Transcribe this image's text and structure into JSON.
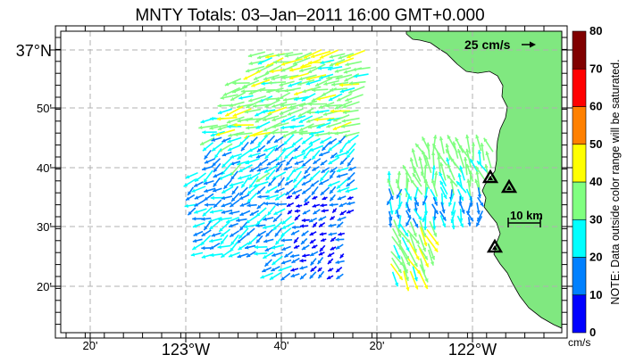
{
  "title": "MNTY Totals: 03–Jan–2011 16:00 GMT+0.000",
  "colors": {
    "land": "#80e880",
    "grid": "#b0b0b0"
  },
  "lat_labels": [
    {
      "text": "37°N",
      "big": true
    },
    {
      "text": "50'",
      "big": false
    },
    {
      "text": "40'",
      "big": false
    },
    {
      "text": "30'",
      "big": false
    },
    {
      "text": "20'",
      "big": false
    }
  ],
  "lon_labels": [
    {
      "text": "20'",
      "big": false
    },
    {
      "text": "123°W",
      "big": true
    },
    {
      "text": "40'",
      "big": false
    },
    {
      "text": "20'",
      "big": false
    },
    {
      "text": "122°W",
      "big": true
    }
  ],
  "scale_arrow_label": "25 cm/s",
  "distance_scale_label": "10 km",
  "colorbar": {
    "ticks": [
      "0",
      "10",
      "20",
      "30",
      "40",
      "50",
      "60",
      "70",
      "80"
    ],
    "colors": [
      "#0000ff",
      "#0080ff",
      "#00ffff",
      "#80ff80",
      "#ffff00",
      "#ff8000",
      "#ff0000",
      "#800000"
    ],
    "unit": "cm/s",
    "note": "NOTE: Data outside color range will be saturated."
  },
  "stations": [
    "station-north",
    "station-mid",
    "station-south"
  ]
}
